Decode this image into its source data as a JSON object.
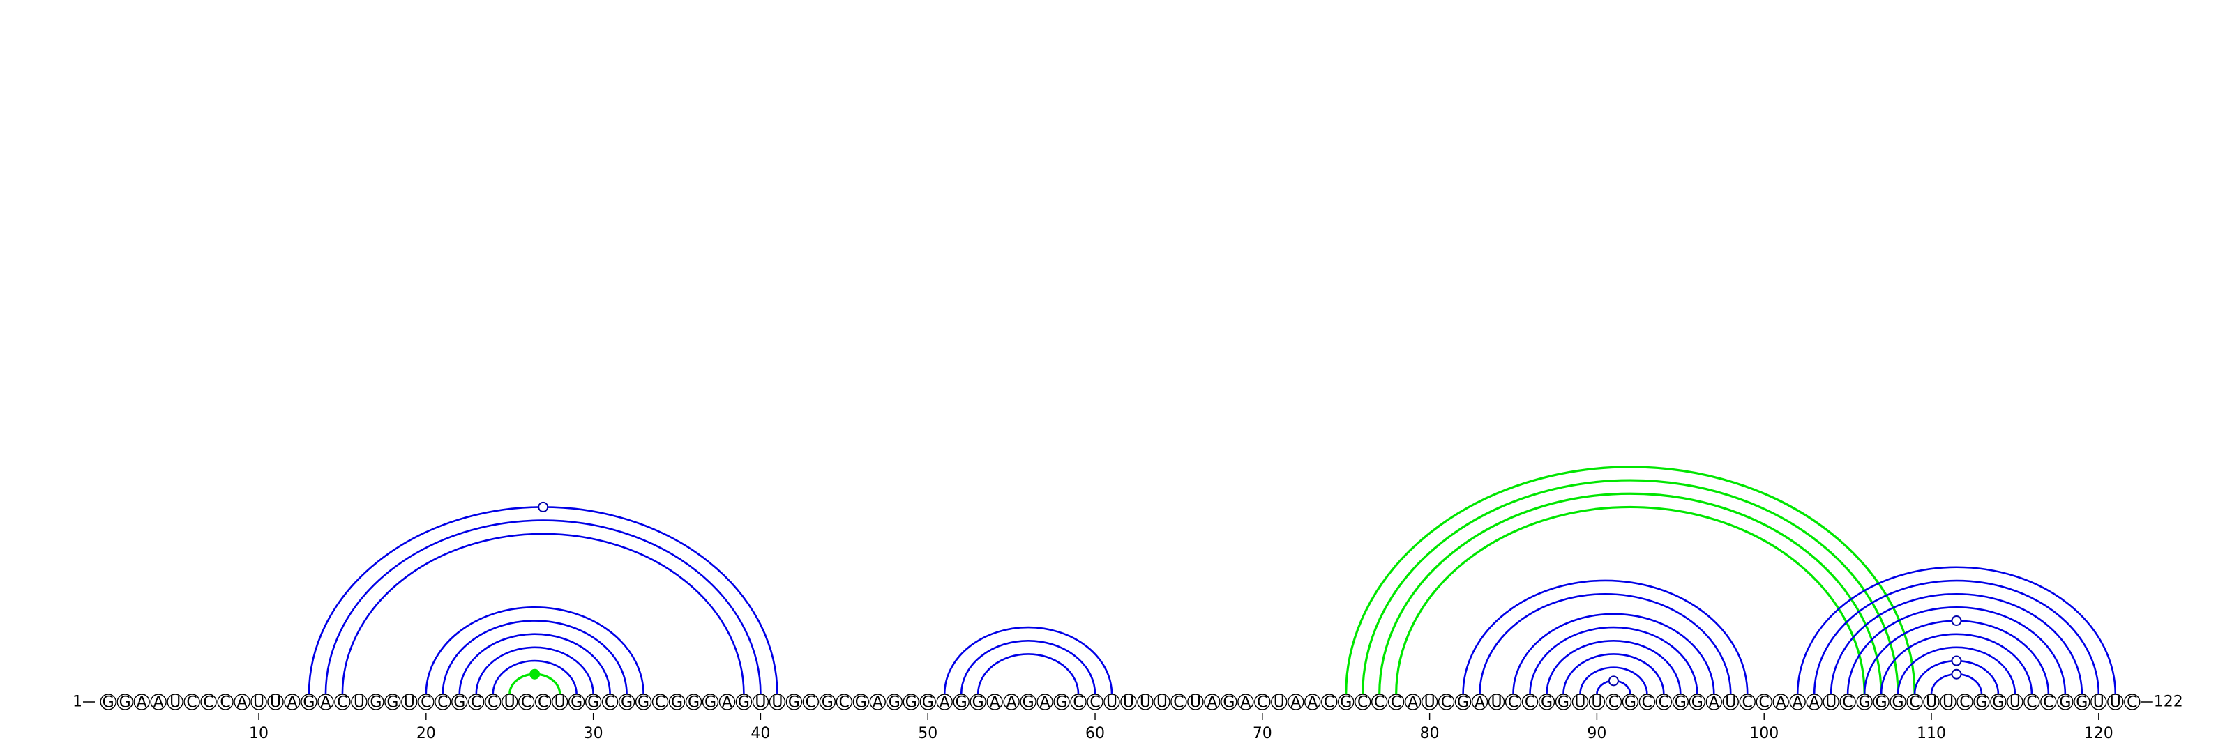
{
  "sequence": "GGAAUCCCAUUAGACUGGUCCGCCUCCUGGCGGCGGGAGUUGCGCGAGGGAGGAAGAGCCUUUUCUAGACUAACGCCCAUCGAUCCGGUUCGCCGGAUCCAAAUCGGGCUUCGGUCCGGUUC",
  "start_label": "1",
  "end_label": "122",
  "ticks": [
    10,
    20,
    30,
    40,
    50,
    60,
    70,
    80,
    90,
    100,
    110,
    120
  ],
  "colors": {
    "blue": "#0000e6",
    "green": "#00e600"
  },
  "arcs": [
    {
      "i": 13,
      "j": 41,
      "color": "blue"
    },
    {
      "i": 14,
      "j": 40,
      "color": "blue"
    },
    {
      "i": 15,
      "j": 39,
      "color": "blue"
    },
    {
      "i": 20,
      "j": 33,
      "color": "blue"
    },
    {
      "i": 21,
      "j": 32,
      "color": "blue"
    },
    {
      "i": 22,
      "j": 31,
      "color": "blue"
    },
    {
      "i": 23,
      "j": 30,
      "color": "blue"
    },
    {
      "i": 24,
      "j": 29,
      "color": "blue"
    },
    {
      "i": 25,
      "j": 28,
      "color": "green"
    },
    {
      "i": 51,
      "j": 61,
      "color": "blue"
    },
    {
      "i": 52,
      "j": 60,
      "color": "blue"
    },
    {
      "i": 53,
      "j": 59,
      "color": "blue"
    },
    {
      "i": 75,
      "j": 109,
      "color": "green"
    },
    {
      "i": 76,
      "j": 108,
      "color": "green"
    },
    {
      "i": 77,
      "j": 107,
      "color": "green"
    },
    {
      "i": 78,
      "j": 106,
      "color": "green"
    },
    {
      "i": 82,
      "j": 99,
      "color": "blue"
    },
    {
      "i": 83,
      "j": 98,
      "color": "blue"
    },
    {
      "i": 85,
      "j": 97,
      "color": "blue"
    },
    {
      "i": 86,
      "j": 96,
      "color": "blue"
    },
    {
      "i": 87,
      "j": 95,
      "color": "blue"
    },
    {
      "i": 88,
      "j": 94,
      "color": "blue"
    },
    {
      "i": 89,
      "j": 93,
      "color": "blue"
    },
    {
      "i": 90,
      "j": 92,
      "color": "blue"
    },
    {
      "i": 102,
      "j": 121,
      "color": "blue"
    },
    {
      "i": 103,
      "j": 120,
      "color": "blue"
    },
    {
      "i": 104,
      "j": 119,
      "color": "blue"
    },
    {
      "i": 105,
      "j": 118,
      "color": "blue"
    },
    {
      "i": 106,
      "j": 117,
      "color": "blue"
    },
    {
      "i": 107,
      "j": 116,
      "color": "blue"
    },
    {
      "i": 108,
      "j": 115,
      "color": "blue"
    },
    {
      "i": 109,
      "j": 114,
      "color": "blue"
    },
    {
      "i": 110,
      "j": 113,
      "color": "blue"
    }
  ],
  "markers": [
    {
      "at": 27,
      "over": [
        13,
        41
      ],
      "fill": "white",
      "color": "blue"
    },
    {
      "at": 26.5,
      "over": [
        25,
        28
      ],
      "fill": "filled",
      "color": "green"
    },
    {
      "at": 91,
      "over": [
        90,
        92
      ],
      "fill": "white",
      "color": "blue"
    },
    {
      "at": 111.5,
      "over": [
        106,
        117
      ],
      "fill": "white",
      "color": "blue"
    },
    {
      "at": 111.5,
      "over": [
        109,
        114
      ],
      "fill": "white",
      "color": "blue"
    },
    {
      "at": 111.5,
      "over": [
        110,
        113
      ],
      "fill": "white",
      "color": "blue"
    }
  ]
}
